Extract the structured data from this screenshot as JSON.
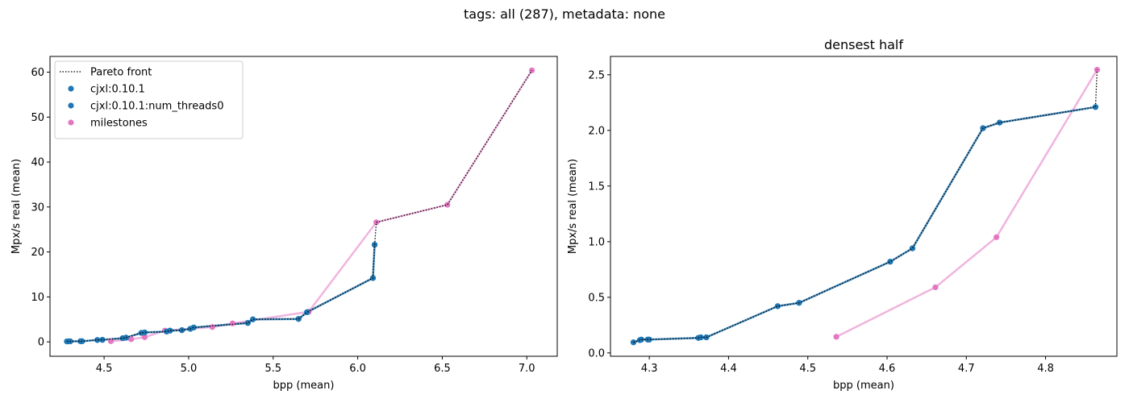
{
  "figure": {
    "suptitle": "tags: all (287), metadata: none"
  },
  "chart_data": [
    {
      "type": "scatter",
      "title": "",
      "xlabel": "bpp (mean)",
      "ylabel": "Mpx/s real (mean)",
      "xlim": [
        4.18,
        7.18
      ],
      "ylim": [
        -3.2,
        63.5
      ],
      "xticks": [
        "4.5",
        "5.0",
        "5.5",
        "6.0",
        "6.5",
        "7.0"
      ],
      "yticks": [
        "0",
        "10",
        "20",
        "30",
        "40",
        "50",
        "60"
      ],
      "legend": {
        "position": "top-left",
        "entries": [
          {
            "label": "Pareto front",
            "style": "dotted",
            "color": "#000000"
          },
          {
            "label": "cjxl:0.10.1",
            "style": "marker",
            "color": "#1f77b4"
          },
          {
            "label": "cjxl:0.10.1:num_threads0",
            "style": "marker",
            "color": "#1f77b4"
          },
          {
            "label": "milestones",
            "style": "marker",
            "color": "#e377c2"
          }
        ]
      },
      "series": [
        {
          "name": "cjxl:0.10.1",
          "color": "#1f77b4",
          "line": true,
          "x": [
            4.28,
            4.29,
            4.3,
            4.36,
            4.37,
            4.46,
            4.49,
            4.61,
            4.63,
            4.72,
            4.74,
            4.87,
            4.89,
            4.96,
            5.01,
            5.03,
            5.35,
            5.38,
            5.65,
            5.7,
            6.09,
            6.1
          ],
          "y": [
            0.1,
            0.12,
            0.12,
            0.14,
            0.14,
            0.42,
            0.45,
            0.82,
            0.94,
            2.0,
            2.1,
            2.3,
            2.5,
            2.6,
            2.9,
            3.2,
            4.2,
            5.0,
            5.1,
            6.6,
            14.2,
            21.6
          ]
        },
        {
          "name": "cjxl:0.10.1:num_threads0",
          "color": "#1f77b4",
          "line": true,
          "x": [
            4.28,
            4.29,
            4.3,
            4.36,
            4.37,
            4.46,
            4.49,
            4.61,
            4.63,
            4.72,
            4.74,
            4.87,
            4.89,
            4.96,
            5.01,
            5.03,
            5.35,
            5.38,
            5.65,
            5.7,
            6.09,
            6.1
          ],
          "y": [
            0.1,
            0.12,
            0.12,
            0.14,
            0.14,
            0.42,
            0.45,
            0.82,
            0.94,
            2.0,
            2.1,
            2.3,
            2.5,
            2.6,
            2.9,
            3.2,
            4.2,
            5.0,
            5.1,
            6.6,
            14.2,
            21.6
          ]
        },
        {
          "name": "milestones",
          "color": "#e377c2",
          "line": true,
          "x": [
            4.54,
            4.66,
            4.74,
            4.86,
            5.14,
            5.26,
            5.71,
            6.11,
            6.53,
            7.03
          ],
          "y": [
            0.15,
            0.59,
            1.04,
            2.5,
            3.3,
            4.1,
            6.7,
            26.6,
            30.5,
            60.4
          ]
        },
        {
          "name": "Pareto front",
          "color": "#000000",
          "dotted": true,
          "x": [
            4.28,
            4.29,
            4.3,
            4.36,
            4.37,
            4.46,
            4.49,
            4.61,
            4.63,
            4.72,
            4.74,
            4.87,
            4.89,
            4.96,
            5.01,
            5.03,
            5.35,
            5.38,
            5.65,
            5.7,
            6.09,
            6.1,
            6.11,
            6.53,
            7.03
          ],
          "y": [
            0.1,
            0.12,
            0.12,
            0.14,
            0.14,
            0.42,
            0.45,
            0.82,
            0.94,
            2.0,
            2.1,
            2.3,
            2.5,
            2.6,
            2.9,
            3.2,
            4.2,
            5.0,
            5.1,
            6.6,
            14.2,
            21.6,
            26.6,
            30.5,
            60.4
          ]
        }
      ]
    },
    {
      "type": "scatter",
      "title": "densest half",
      "xlabel": "bpp (mean)",
      "ylabel": "Mpx/s real (mean)",
      "xlim": [
        4.251,
        4.89
      ],
      "ylim": [
        -0.03,
        2.665
      ],
      "xticks": [
        "4.3",
        "4.4",
        "4.5",
        "4.6",
        "4.7",
        "4.8"
      ],
      "yticks": [
        "0.0",
        "0.5",
        "1.0",
        "1.5",
        "2.0",
        "2.5"
      ],
      "series": [
        {
          "name": "cjxl:0.10.1",
          "color": "#1f77b4",
          "line": true,
          "x": [
            4.28,
            4.288,
            4.29,
            4.298,
            4.3,
            4.362,
            4.365,
            4.372,
            4.462,
            4.489,
            4.604,
            4.632,
            4.721,
            4.742,
            4.863
          ],
          "y": [
            0.095,
            0.115,
            0.12,
            0.12,
            0.12,
            0.135,
            0.14,
            0.14,
            0.42,
            0.45,
            0.82,
            0.94,
            2.02,
            2.07,
            2.21
          ]
        },
        {
          "name": "cjxl:0.10.1:num_threads0",
          "color": "#1f77b4",
          "line": true,
          "x": [
            4.28,
            4.288,
            4.29,
            4.298,
            4.3,
            4.362,
            4.365,
            4.372,
            4.462,
            4.489,
            4.604,
            4.632,
            4.721,
            4.742,
            4.863
          ],
          "y": [
            0.095,
            0.115,
            0.12,
            0.12,
            0.12,
            0.135,
            0.14,
            0.14,
            0.42,
            0.45,
            0.82,
            0.94,
            2.02,
            2.07,
            2.21
          ]
        },
        {
          "name": "milestones",
          "color": "#e377c2",
          "line": true,
          "x": [
            4.536,
            4.661,
            4.738,
            4.865
          ],
          "y": [
            0.145,
            0.59,
            1.04,
            2.545
          ]
        },
        {
          "name": "Pareto front",
          "color": "#000000",
          "dotted": true,
          "x": [
            4.28,
            4.288,
            4.29,
            4.298,
            4.3,
            4.362,
            4.365,
            4.372,
            4.462,
            4.489,
            4.604,
            4.632,
            4.721,
            4.742,
            4.863,
            4.865
          ],
          "y": [
            0.095,
            0.115,
            0.12,
            0.12,
            0.12,
            0.135,
            0.14,
            0.14,
            0.42,
            0.45,
            0.82,
            0.94,
            2.02,
            2.07,
            2.21,
            2.545
          ]
        }
      ]
    }
  ]
}
